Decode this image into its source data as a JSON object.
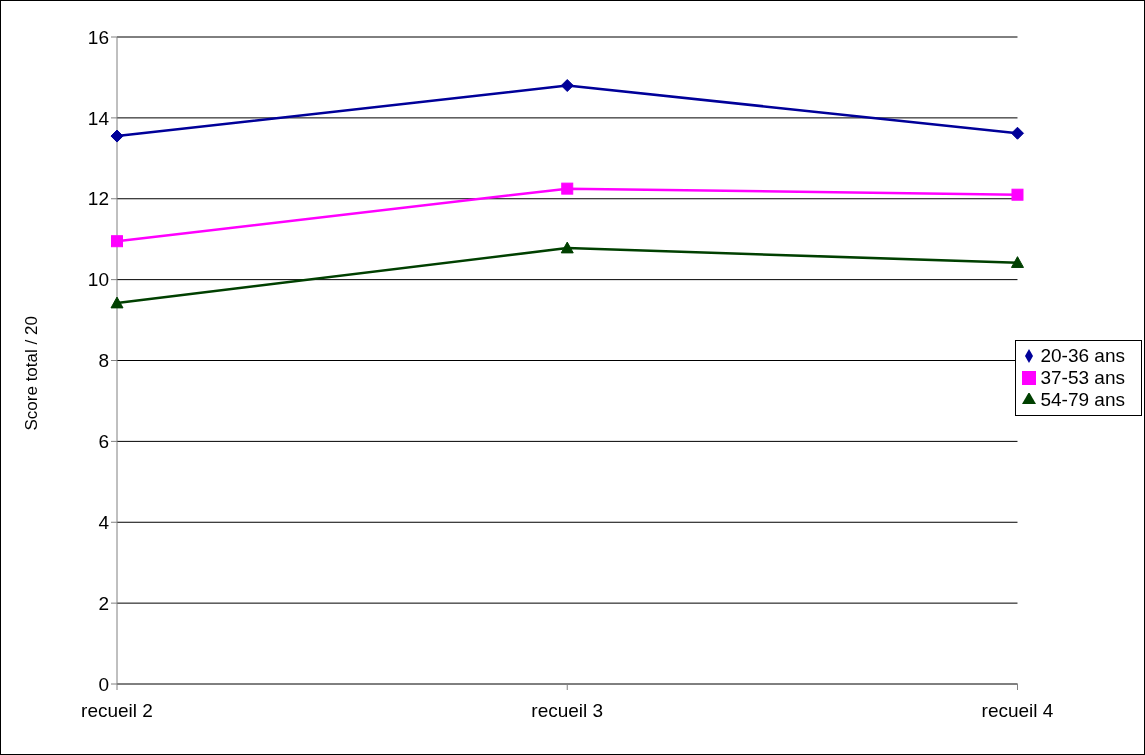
{
  "chart_data": {
    "type": "line",
    "ylabel": "Score total / 20",
    "categories": [
      "recueil 2",
      "recueil 3",
      "recueil 4"
    ],
    "series": [
      {
        "name": "20-36 ans",
        "color": "#000099",
        "marker": "diamond",
        "values": [
          13.55,
          14.8,
          13.62
        ]
      },
      {
        "name": "37-53 ans",
        "color": "#ff00ff",
        "marker": "square",
        "values": [
          10.95,
          12.25,
          12.1
        ]
      },
      {
        "name": "54-79 ans",
        "color": "#004000",
        "marker": "triangle",
        "values": [
          9.42,
          10.78,
          10.42
        ]
      }
    ],
    "ylim": [
      0,
      16
    ],
    "yticks": [
      0,
      2,
      4,
      6,
      8,
      10,
      12,
      14,
      16
    ],
    "grid": "y",
    "legend": "right",
    "line_style": "solid"
  }
}
